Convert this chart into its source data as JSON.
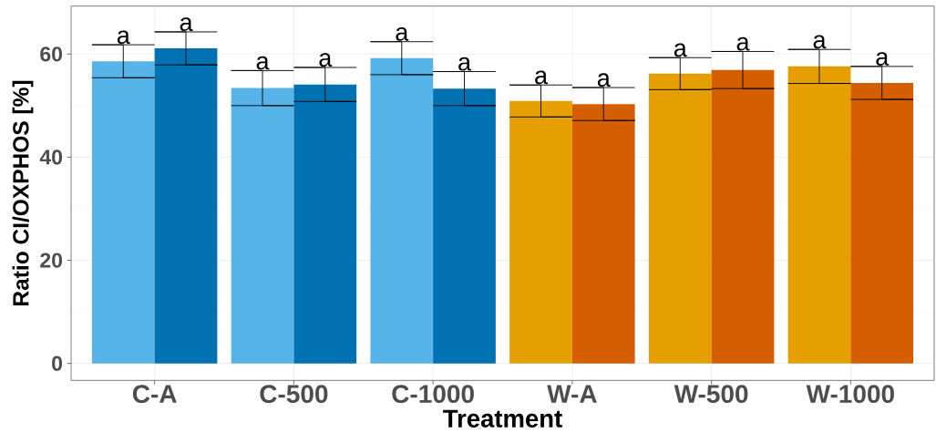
{
  "chart_data": {
    "type": "bar",
    "xlabel": "Treatment",
    "ylabel": "Ratio CI/OXPHOS [%]",
    "categories": [
      "C-A",
      "C-500",
      "C-1000",
      "W-A",
      "W-500",
      "W-1000"
    ],
    "series": [
      {
        "colors": [
          "#56b4e9",
          "#56b4e9",
          "#56b4e9",
          "#e69f00",
          "#e69f00",
          "#e69f00"
        ],
        "values": [
          58.6,
          53.4,
          59.2,
          50.9,
          56.2,
          57.6
        ],
        "errors": [
          3.2,
          3.4,
          3.2,
          3.1,
          3.1,
          3.3
        ]
      },
      {
        "colors": [
          "#0072b2",
          "#0072b2",
          "#0072b2",
          "#d55e00",
          "#d55e00",
          "#d55e00"
        ],
        "values": [
          61.1,
          54.1,
          53.3,
          50.3,
          56.9,
          54.4
        ],
        "errors": [
          3.2,
          3.3,
          3.3,
          3.2,
          3.6,
          3.2
        ]
      }
    ],
    "ylim": [
      -3.3,
      69.3
    ],
    "yticks": [
      0,
      20,
      40,
      60
    ],
    "grid": true,
    "annotations": [
      {
        "text": "a",
        "x": "C-A",
        "y": 61.8
      },
      "a",
      "a",
      "a",
      "a",
      {
        "text": "a",
        "x": "C-1000",
        "y": 56.6
      },
      "a",
      "a",
      "a",
      "a",
      "a",
      {
        "text": "a",
        "x": "W-1000",
        "y": 57.6
      }
    ]
  }
}
